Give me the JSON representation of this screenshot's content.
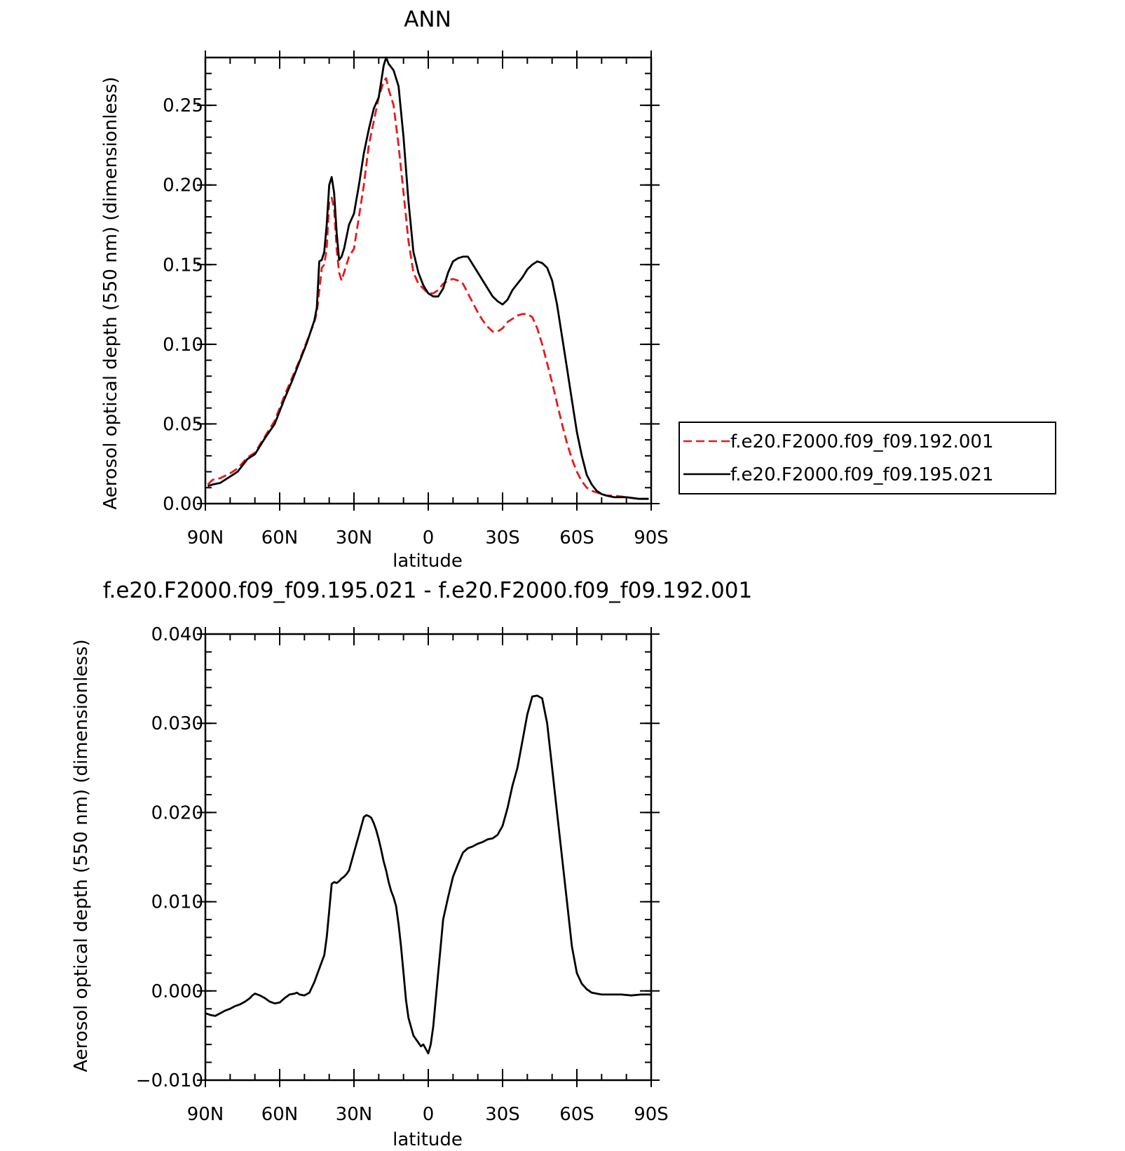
{
  "chart_data": [
    {
      "type": "line",
      "title": "ANN",
      "xlabel": "latitude",
      "ylabel": "Aerosol optical depth (550 nm) (dimensionless)",
      "xlim": [
        90,
        -90
      ],
      "ylim": [
        0.0,
        0.28
      ],
      "x_ticks": [
        90,
        60,
        30,
        0,
        -30,
        -60,
        -90
      ],
      "x_tick_labels": [
        "90N",
        "60N",
        "30N",
        "0",
        "30S",
        "60S",
        "90S"
      ],
      "y_ticks": [
        0.0,
        0.05,
        0.1,
        0.15,
        0.2,
        0.25
      ],
      "y_tick_labels": [
        "0.00",
        "0.05",
        "0.10",
        "0.15",
        "0.20",
        "0.25"
      ],
      "grid": false,
      "legend_position": "right",
      "series": [
        {
          "name": "f.e20.F2000.f09_f09.192.001",
          "color": "#e8191c",
          "dash": "dashed",
          "x": [
            89,
            87,
            84,
            80,
            77,
            73,
            70,
            66,
            62,
            58,
            55,
            52,
            49,
            46,
            45,
            43,
            42,
            41,
            40,
            39,
            38,
            37,
            36,
            35,
            34,
            32,
            30,
            28,
            26,
            24,
            22,
            20,
            18,
            17,
            16,
            14,
            12,
            10,
            8,
            6,
            4,
            2,
            0,
            -2,
            -4,
            -6,
            -8,
            -10,
            -12,
            -14,
            -16,
            -18,
            -20,
            -22,
            -24,
            -26,
            -28,
            -30,
            -32,
            -34,
            -36,
            -38,
            -40,
            -42,
            -44,
            -46,
            -48,
            -50,
            -52,
            -54,
            -56,
            -58,
            -60,
            -62,
            -64,
            -66,
            -68,
            -70,
            -72,
            -75,
            -80,
            -85,
            -89
          ],
          "values": [
            0.012,
            0.015,
            0.016,
            0.019,
            0.022,
            0.029,
            0.032,
            0.042,
            0.052,
            0.068,
            0.079,
            0.09,
            0.102,
            0.114,
            0.12,
            0.148,
            0.15,
            0.16,
            0.19,
            0.192,
            0.185,
            0.16,
            0.145,
            0.14,
            0.145,
            0.155,
            0.16,
            0.18,
            0.2,
            0.225,
            0.24,
            0.255,
            0.265,
            0.267,
            0.26,
            0.25,
            0.225,
            0.195,
            0.165,
            0.145,
            0.138,
            0.135,
            0.132,
            0.132,
            0.134,
            0.138,
            0.14,
            0.141,
            0.14,
            0.138,
            0.132,
            0.126,
            0.12,
            0.115,
            0.111,
            0.108,
            0.108,
            0.11,
            0.114,
            0.116,
            0.118,
            0.119,
            0.119,
            0.117,
            0.11,
            0.1,
            0.088,
            0.076,
            0.063,
            0.05,
            0.038,
            0.028,
            0.02,
            0.014,
            0.01,
            0.008,
            0.007,
            0.006,
            0.005,
            0.005,
            0.004,
            0.003,
            0.003
          ]
        },
        {
          "name": "f.e20.F2000.f09_f09.195.021",
          "color": "#000000",
          "dash": "solid",
          "x": [
            89,
            87,
            84,
            80,
            77,
            73,
            70,
            66,
            62,
            58,
            55,
            52,
            49,
            46,
            45,
            44,
            43,
            42,
            41,
            40,
            39,
            38,
            37,
            36,
            35,
            34,
            32,
            30,
            28,
            26,
            24,
            22,
            20,
            18,
            17,
            16,
            14,
            12,
            10,
            8,
            6,
            4,
            2,
            0,
            -2,
            -4,
            -6,
            -8,
            -10,
            -12,
            -14,
            -16,
            -18,
            -20,
            -22,
            -24,
            -26,
            -28,
            -30,
            -32,
            -34,
            -36,
            -38,
            -40,
            -42,
            -44,
            -46,
            -48,
            -50,
            -52,
            -54,
            -56,
            -58,
            -60,
            -62,
            -64,
            -66,
            -68,
            -70,
            -72,
            -75,
            -80,
            -85,
            -89
          ],
          "values": [
            0.011,
            0.012,
            0.013,
            0.017,
            0.02,
            0.028,
            0.031,
            0.041,
            0.05,
            0.066,
            0.077,
            0.089,
            0.101,
            0.115,
            0.123,
            0.152,
            0.153,
            0.158,
            0.175,
            0.2,
            0.205,
            0.195,
            0.17,
            0.153,
            0.155,
            0.16,
            0.175,
            0.182,
            0.2,
            0.22,
            0.235,
            0.248,
            0.255,
            0.275,
            0.28,
            0.276,
            0.272,
            0.262,
            0.23,
            0.19,
            0.158,
            0.145,
            0.137,
            0.132,
            0.13,
            0.13,
            0.135,
            0.145,
            0.152,
            0.154,
            0.155,
            0.155,
            0.15,
            0.145,
            0.14,
            0.135,
            0.13,
            0.127,
            0.125,
            0.128,
            0.134,
            0.138,
            0.142,
            0.147,
            0.15,
            0.152,
            0.151,
            0.148,
            0.14,
            0.125,
            0.105,
            0.085,
            0.065,
            0.045,
            0.03,
            0.018,
            0.012,
            0.008,
            0.006,
            0.005,
            0.004,
            0.004,
            0.003,
            0.003
          ]
        }
      ]
    },
    {
      "type": "line",
      "title": "f.e20.F2000.f09_f09.195.021 - f.e20.F2000.f09_f09.192.001",
      "xlabel": "latitude",
      "ylabel": "Aerosol optical depth (550 nm) (dimensionless)",
      "xlim": [
        90,
        -90
      ],
      "ylim": [
        -0.01,
        0.04
      ],
      "x_ticks": [
        90,
        60,
        30,
        0,
        -30,
        -60,
        -90
      ],
      "x_tick_labels": [
        "90N",
        "60N",
        "30N",
        "0",
        "30S",
        "60S",
        "90S"
      ],
      "y_ticks": [
        -0.01,
        0.0,
        0.01,
        0.02,
        0.03,
        0.04
      ],
      "y_tick_labels": [
        "−0.010",
        "0.000",
        "0.010",
        "0.020",
        "0.030",
        "0.040"
      ],
      "grid": false,
      "series": [
        {
          "color": "#000000",
          "dash": "solid",
          "x": [
            90,
            88,
            86,
            84,
            82,
            80,
            78,
            76,
            74,
            72,
            71,
            70,
            68,
            66,
            64,
            62,
            60,
            58,
            56,
            54,
            53,
            52,
            50,
            48,
            46,
            44,
            42,
            41,
            40,
            39,
            38,
            37,
            36,
            35,
            34,
            33,
            32,
            30,
            28,
            27,
            26,
            25,
            24,
            23,
            22,
            21,
            20,
            19,
            18,
            17,
            16,
            15,
            14,
            13,
            12,
            11,
            10,
            9,
            8,
            6,
            4,
            3,
            2,
            1,
            0,
            -1,
            -2,
            -3,
            -4,
            -5,
            -6,
            -8,
            -10,
            -12,
            -14,
            -16,
            -18,
            -20,
            -22,
            -24,
            -26,
            -28,
            -30,
            -32,
            -34,
            -36,
            -38,
            -40,
            -42,
            -44,
            -46,
            -48,
            -50,
            -52,
            -54,
            -56,
            -58,
            -60,
            -62,
            -64,
            -66,
            -68,
            -70,
            -72,
            -75,
            -78,
            -82,
            -86,
            -90
          ],
          "values": [
            -0.0025,
            -0.0027,
            -0.0028,
            -0.0025,
            -0.0022,
            -0.002,
            -0.0017,
            -0.0015,
            -0.0012,
            -0.0008,
            -0.0005,
            -0.0003,
            -0.0005,
            -0.0008,
            -0.0012,
            -0.0014,
            -0.0013,
            -0.0008,
            -0.0004,
            -0.0003,
            -0.0002,
            -0.0004,
            -0.0005,
            -0.0002,
            0.001,
            0.0025,
            0.004,
            0.006,
            0.009,
            0.012,
            0.0122,
            0.0121,
            0.0123,
            0.0126,
            0.0128,
            0.0131,
            0.0135,
            0.0155,
            0.0175,
            0.0185,
            0.0195,
            0.0197,
            0.0196,
            0.0194,
            0.0188,
            0.018,
            0.017,
            0.0158,
            0.0145,
            0.0135,
            0.0122,
            0.0112,
            0.0105,
            0.0095,
            0.0075,
            0.005,
            0.002,
            -0.001,
            -0.003,
            -0.005,
            -0.0058,
            -0.0062,
            -0.006,
            -0.0065,
            -0.007,
            -0.006,
            -0.004,
            -0.001,
            0.002,
            0.005,
            0.008,
            0.0105,
            0.0128,
            0.0142,
            0.0155,
            0.016,
            0.0162,
            0.0165,
            0.0167,
            0.017,
            0.0171,
            0.0175,
            0.0185,
            0.0205,
            0.023,
            0.025,
            0.028,
            0.031,
            0.033,
            0.0331,
            0.0328,
            0.03,
            0.025,
            0.02,
            0.015,
            0.01,
            0.005,
            0.002,
            0.0008,
            0.0002,
            -0.0002,
            -0.0003,
            -0.0004,
            -0.0004,
            -0.0004,
            -0.0004,
            -0.0005,
            -0.0004,
            -0.0004
          ]
        }
      ]
    }
  ]
}
